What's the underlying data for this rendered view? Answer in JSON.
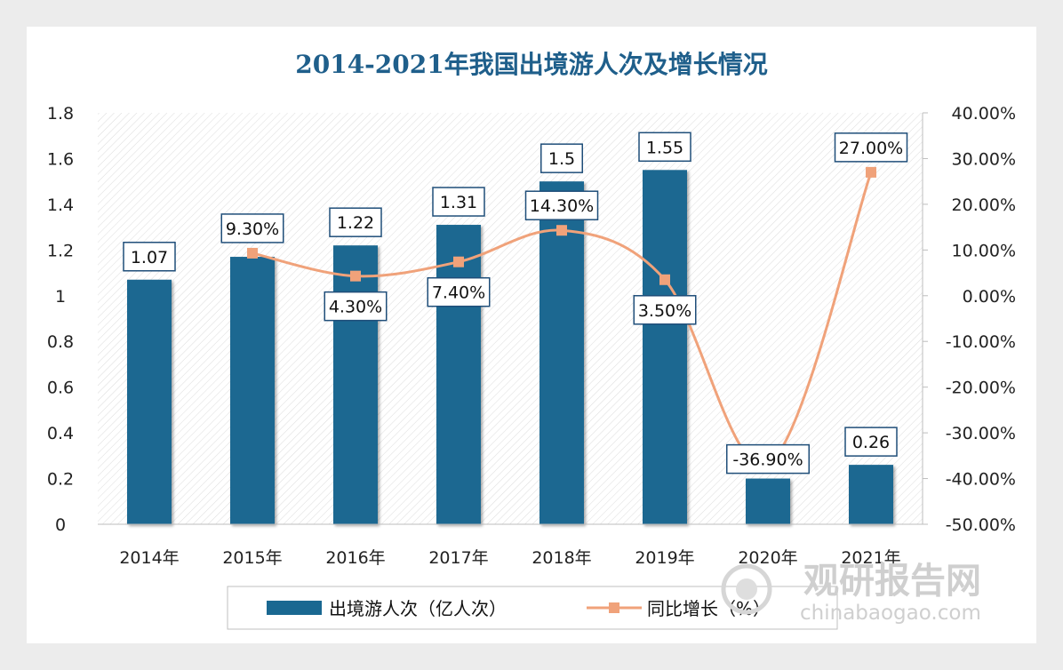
{
  "chart_data": {
    "type": "bar",
    "title": "2014-2021年我国出境游人次及增长情况",
    "categories": [
      "2014年",
      "2015年",
      "2016年",
      "2017年",
      "2018年",
      "2019年",
      "2020年",
      "2021年"
    ],
    "series": [
      {
        "name": "出境游人次（亿人次）",
        "type": "bar",
        "axis": "left",
        "values": [
          1.07,
          1.17,
          1.22,
          1.31,
          1.5,
          1.55,
          0.2,
          0.26
        ],
        "data_labels": [
          "1.07",
          "",
          "1.22",
          "1.31",
          "1.5",
          "1.55",
          "",
          "0.26"
        ],
        "color": "#1a6891"
      },
      {
        "name": "同比增长（%）",
        "type": "line",
        "axis": "right",
        "values": [
          null,
          9.3,
          4.3,
          7.4,
          14.3,
          3.5,
          -36.9,
          27.0
        ],
        "data_labels": [
          "",
          "9.30%",
          "4.30%",
          "7.40%",
          "14.30%",
          "3.50%",
          "-36.90%",
          "27.00%"
        ],
        "color": "#f0a27a"
      }
    ],
    "y_left": {
      "lim": [
        0,
        1.8
      ],
      "ticks": [
        "0",
        "0.2",
        "0.4",
        "0.6",
        "0.8",
        "1",
        "1.2",
        "1.4",
        "1.6",
        "1.8"
      ]
    },
    "y_right": {
      "lim": [
        -50,
        40
      ],
      "ticks": [
        "-50.00%",
        "-40.00%",
        "-30.00%",
        "-20.00%",
        "-10.00%",
        "0.00%",
        "10.00%",
        "20.00%",
        "30.00%",
        "40.00%"
      ]
    },
    "legend_position": "bottom",
    "grid": false
  },
  "watermark": {
    "brand": "观研报告网",
    "site": "chinabaogao.com"
  }
}
